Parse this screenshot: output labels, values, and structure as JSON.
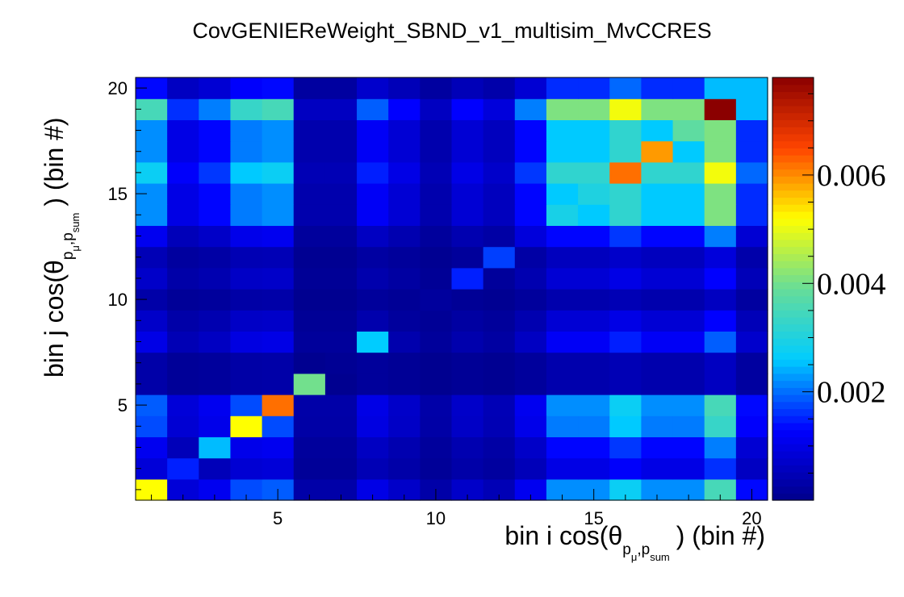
{
  "chart_data": {
    "type": "heatmap",
    "title": "CovGENIEReWeight_SBND_v1_multisim_MvCCRES",
    "xlabel": {
      "prefix": "bin i cos(θ",
      "sub_p1": "p",
      "sub_mu": "μ",
      "sub_comma": ",",
      "sub_p2": "p",
      "sub_sum": "sum",
      "suffix": ") (bin #)"
    },
    "ylabel": {
      "prefix": "bin j cos(θ",
      "sub_p1": "p",
      "sub_mu": "μ",
      "sub_comma": ",",
      "sub_p2": "p",
      "sub_sum": "sum",
      "suffix": ") (bin #)"
    },
    "x_range": [
      0.5,
      20.5
    ],
    "y_range": [
      0.5,
      20.5
    ],
    "x_ticks": [
      5,
      10,
      15,
      20
    ],
    "y_ticks": [
      5,
      10,
      15,
      20
    ],
    "z_range": [
      0,
      0.0078
    ],
    "z_ticks": [
      0.002,
      0.004,
      0.006
    ],
    "z_tick_labels": [
      "0.002",
      "0.004",
      "0.006"
    ],
    "colormap": [
      "#00008b",
      "#0000ff",
      "#00ccff",
      "#66dd99",
      "#ffff00",
      "#ff4400",
      "#8b0000"
    ],
    "profile": [
      0.0035,
      0.0016,
      0.0021,
      0.0033,
      0.0035,
      0.0006,
      0.0006,
      0.0019,
      0.0013,
      0.0006,
      0.0013,
      0.0009,
      0.0021,
      0.0041,
      0.0041,
      0.0051,
      0.0041,
      0.0041,
      0.0065,
      0.0025
    ],
    "diag_row_values": [
      0.0052,
      0.0015,
      0.0025,
      0.0052,
      0.0062,
      0.004,
      0.0001,
      0.0026,
      0.0002,
      0.0002,
      0.0015,
      0.0017,
      0.0009,
      0.0029,
      0.003,
      0.0062,
      0.0059,
      0.0038,
      0.0078,
      0.0025
    ]
  }
}
